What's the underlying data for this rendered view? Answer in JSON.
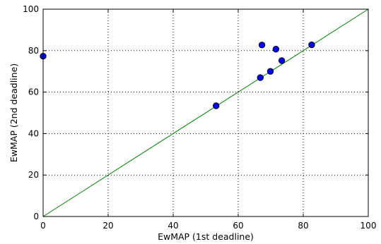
{
  "chart_data": {
    "type": "scatter",
    "xlabel": "EwMAP (1st deadline)",
    "ylabel": "EwMAP (2nd deadline)",
    "xlim": [
      0,
      100
    ],
    "ylim": [
      0,
      100
    ],
    "x_ticks": [
      "0",
      "20",
      "40",
      "60",
      "80",
      "100"
    ],
    "y_ticks": [
      "0",
      "20",
      "40",
      "60",
      "80",
      "100"
    ],
    "grid": true,
    "grid_style": "dotted",
    "points": [
      {
        "x": 0,
        "y": 77.3
      },
      {
        "x": 53.2,
        "y": 53.4
      },
      {
        "x": 66.8,
        "y": 67.0
      },
      {
        "x": 67.3,
        "y": 82.7
      },
      {
        "x": 69.9,
        "y": 70.0
      },
      {
        "x": 71.6,
        "y": 80.7
      },
      {
        "x": 73.4,
        "y": 75.2
      },
      {
        "x": 82.6,
        "y": 82.8
      }
    ],
    "reference_line": {
      "from": [
        0,
        0
      ],
      "to": [
        100,
        100
      ],
      "color": "#008000"
    },
    "marker_color": "#0000ff"
  }
}
